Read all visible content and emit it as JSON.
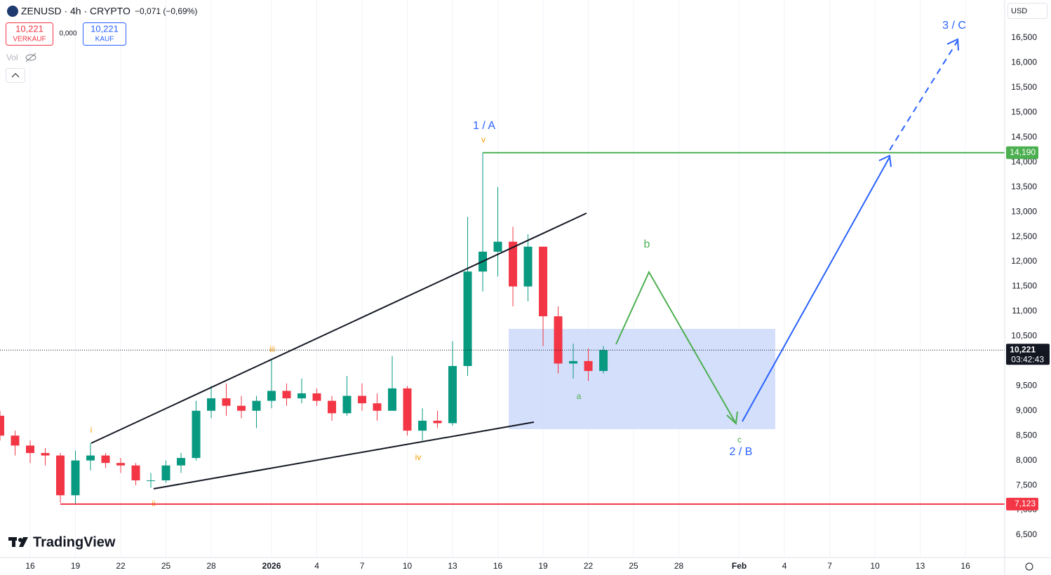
{
  "header": {
    "symbol": "ZENUSD · 4h · CRYPTO",
    "change": "−0,071 (−0,69%)",
    "sell_price": "10,221",
    "sell_label": "VERKAUF",
    "spread": "0,000",
    "buy_price": "10,221",
    "buy_label": "KAUF",
    "volume_label": "Vol",
    "currency": "USD",
    "brand": "TradingView"
  },
  "annotations": {
    "wave_1a": "1 / A",
    "wave_v": "v",
    "wave_i": "i",
    "wave_ii": "ii",
    "wave_iii": "iii",
    "wave_iv": "iv",
    "wave_a": "a",
    "wave_b": "b",
    "wave_c": "c",
    "wave_2b": "2 / B",
    "wave_3c": "3 / C"
  },
  "chart_data": {
    "type": "candlestick",
    "up_color": "#089981",
    "down_color": "#f23645",
    "grid": true,
    "xlim": [
      "2025-12-14",
      "2026-02-18T14:24"
    ],
    "xticks": [
      {
        "value": "2025-12-16",
        "label": "16"
      },
      {
        "value": "2025-12-19",
        "label": "19"
      },
      {
        "value": "2025-12-22",
        "label": "22"
      },
      {
        "value": "2025-12-25",
        "label": "25"
      },
      {
        "value": "2025-12-28",
        "label": "28"
      },
      {
        "value": "2026-01-01",
        "label": "2026"
      },
      {
        "value": "2026-01-04",
        "label": "4"
      },
      {
        "value": "2026-01-07",
        "label": "7"
      },
      {
        "value": "2026-01-10",
        "label": "10"
      },
      {
        "value": "2026-01-13",
        "label": "13"
      },
      {
        "value": "2026-01-16",
        "label": "16"
      },
      {
        "value": "2026-01-19",
        "label": "19"
      },
      {
        "value": "2026-01-22",
        "label": "22"
      },
      {
        "value": "2026-01-25",
        "label": "25"
      },
      {
        "value": "2026-01-28",
        "label": "28"
      },
      {
        "value": "2026-02-01",
        "label": "Feb"
      },
      {
        "value": "2026-02-04",
        "label": "4"
      },
      {
        "value": "2026-02-07",
        "label": "7"
      },
      {
        "value": "2026-02-10",
        "label": "10"
      },
      {
        "value": "2026-02-13",
        "label": "13"
      },
      {
        "value": "2026-02-16",
        "label": "16"
      }
    ],
    "ylim": [
      6049,
      17262
    ],
    "yticks": [
      {
        "value": 6500,
        "label": "6,500"
      },
      {
        "value": 7000,
        "label": "7,000"
      },
      {
        "value": 7500,
        "label": "7,500"
      },
      {
        "value": 8000,
        "label": "8,000"
      },
      {
        "value": 8500,
        "label": "8,500"
      },
      {
        "value": 9000,
        "label": "9,000"
      },
      {
        "value": 9500,
        "label": "9,500"
      },
      {
        "value": 10000,
        "label": "10,000"
      },
      {
        "value": 10500,
        "label": "10,500"
      },
      {
        "value": 11000,
        "label": "11,000"
      },
      {
        "value": 11500,
        "label": "11,500"
      },
      {
        "value": 12000,
        "label": "12,000"
      },
      {
        "value": 12500,
        "label": "12,500"
      },
      {
        "value": 13000,
        "label": "13,000"
      },
      {
        "value": 13500,
        "label": "13,500"
      },
      {
        "value": 14000,
        "label": "14,000"
      },
      {
        "value": 14500,
        "label": "14,500"
      },
      {
        "value": 15000,
        "label": "15,000"
      },
      {
        "value": 15500,
        "label": "15,500"
      },
      {
        "value": 16000,
        "label": "16,000"
      },
      {
        "value": 16500,
        "label": "16,500"
      }
    ],
    "x": [
      "2025-12-14",
      "2025-12-15",
      "2025-12-16",
      "2025-12-17",
      "2025-12-18",
      "2025-12-19",
      "2025-12-20",
      "2025-12-21",
      "2025-12-22",
      "2025-12-23",
      "2025-12-24",
      "2025-12-25",
      "2025-12-26",
      "2025-12-27",
      "2025-12-28",
      "2025-12-29",
      "2025-12-30",
      "2025-12-31",
      "2026-01-01",
      "2026-01-02",
      "2026-01-03",
      "2026-01-04",
      "2026-01-05",
      "2026-01-06",
      "2026-01-07",
      "2026-01-08",
      "2026-01-09",
      "2026-01-10",
      "2026-01-11",
      "2026-01-12",
      "2026-01-13",
      "2026-01-14",
      "2026-01-15",
      "2026-01-16",
      "2026-01-17",
      "2026-01-18",
      "2026-01-19",
      "2026-01-20",
      "2026-01-21",
      "2026-01-22",
      "2026-01-23"
    ],
    "open": [
      8900,
      8500,
      8300,
      8150,
      8100,
      7300,
      8000,
      8100,
      7950,
      7900,
      7600,
      7600,
      7900,
      8050,
      9000,
      9250,
      9100,
      9000,
      9200,
      9400,
      9250,
      9350,
      9200,
      8950,
      9300,
      9150,
      9000,
      9450,
      8600,
      8800,
      8750,
      9900,
      11800,
      12200,
      12400,
      11500,
      12300,
      10900,
      9950,
      10000,
      9800
    ],
    "high": [
      9000,
      8600,
      8400,
      8250,
      8150,
      8200,
      8350,
      8150,
      8050,
      7950,
      7750,
      8000,
      8150,
      9200,
      9500,
      9550,
      9300,
      9300,
      10050,
      9550,
      9650,
      9450,
      9300,
      9700,
      9550,
      9350,
      10100,
      9500,
      9050,
      9000,
      10400,
      12900,
      14190,
      13500,
      12700,
      12550,
      12300,
      11100,
      10350,
      10250,
      10300
    ],
    "low": [
      8400,
      8100,
      7950,
      7900,
      7150,
      7123,
      7800,
      7850,
      7750,
      7500,
      7450,
      7550,
      7750,
      8000,
      8850,
      8900,
      8850,
      8650,
      9050,
      9100,
      9150,
      9100,
      8800,
      8900,
      9000,
      8800,
      9000,
      8500,
      8400,
      8650,
      8700,
      9700,
      11400,
      11700,
      11100,
      11200,
      10300,
      9750,
      9650,
      9600,
      9750
    ],
    "close": [
      8500,
      8300,
      8150,
      8100,
      7300,
      8000,
      8100,
      7950,
      7900,
      7600,
      7600,
      7900,
      8050,
      9000,
      9250,
      9100,
      9000,
      9200,
      9400,
      9250,
      9350,
      9200,
      8950,
      9300,
      9150,
      9000,
      9450,
      8600,
      8800,
      8750,
      9900,
      11800,
      12200,
      12400,
      11500,
      12300,
      10900,
      9950,
      10000,
      9800,
      10221
    ],
    "price_lines": [
      {
        "value": 14190,
        "label": "14,190",
        "color": "#4caf50",
        "from": "2026-01-15"
      },
      {
        "value": 7123,
        "label": "7,123",
        "color": "#f23645",
        "from": "2025-12-18"
      }
    ],
    "current_price": {
      "value": 10221,
      "label": "10,221",
      "countdown": "03:42:43"
    }
  }
}
